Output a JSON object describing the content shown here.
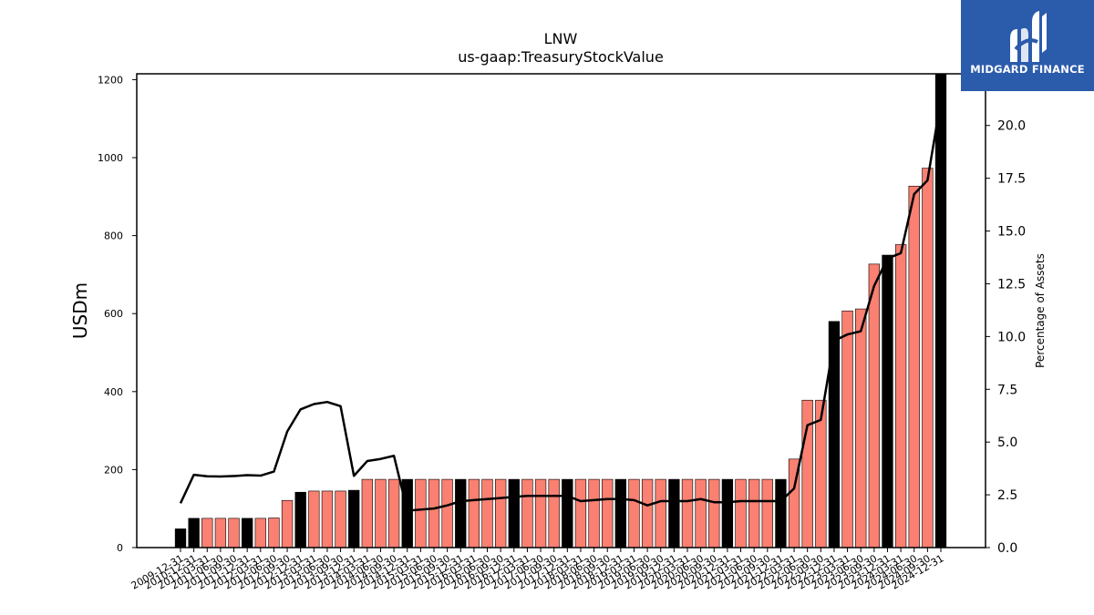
{
  "chart_data": {
    "type": "bar",
    "title": "LNW",
    "subtitle": "us-gaap:TreasuryStockValue",
    "ylabel": "USDm",
    "y2label": "Percentage of Assets",
    "ylim": [
      0,
      1215
    ],
    "y2lim": [
      0,
      22.45
    ],
    "yticks": [
      0,
      200,
      400,
      600,
      800,
      1000,
      1200
    ],
    "y2ticks": [
      "0.0",
      "2.5",
      "5.0",
      "7.5",
      "10.0",
      "12.5",
      "15.0",
      "17.5",
      "20.0"
    ],
    "grid": false,
    "annual_color": "#000000",
    "quarter_color": "#fa8072",
    "line_color": "#000000",
    "categories": [
      "2009-12-31",
      "2010-12-31",
      "2011-03-31",
      "2011-06-30",
      "2011-09-30",
      "2011-12-31",
      "2012-03-31",
      "2012-06-30",
      "2012-09-30",
      "2012-12-31",
      "2013-03-31",
      "2013-06-30",
      "2013-09-30",
      "2013-12-31",
      "2014-03-31",
      "2014-06-30",
      "2014-09-30",
      "2014-12-31",
      "2015-03-31",
      "2015-06-30",
      "2015-09-30",
      "2015-12-31",
      "2016-03-31",
      "2016-06-30",
      "2016-09-30",
      "2016-12-31",
      "2017-03-31",
      "2017-06-30",
      "2017-09-30",
      "2017-12-31",
      "2018-03-31",
      "2018-06-30",
      "2018-09-30",
      "2018-12-31",
      "2019-03-31",
      "2019-06-30",
      "2019-09-30",
      "2019-12-31",
      "2020-03-31",
      "2020-06-30",
      "2020-09-30",
      "2020-12-31",
      "2021-03-31",
      "2021-06-30",
      "2021-09-30",
      "2021-12-31",
      "2022-03-31",
      "2022-06-30",
      "2022-09-30",
      "2022-12-31",
      "2023-03-31",
      "2023-06-30",
      "2023-09-30",
      "2023-12-31",
      "2024-03-31",
      "2024-06-30",
      "2024-09-30",
      "2024-12-31"
    ],
    "annual": [
      true,
      true,
      false,
      false,
      false,
      true,
      false,
      false,
      false,
      true,
      false,
      false,
      false,
      true,
      false,
      false,
      false,
      true,
      false,
      false,
      false,
      true,
      false,
      false,
      false,
      true,
      false,
      false,
      false,
      true,
      false,
      false,
      false,
      true,
      false,
      false,
      false,
      true,
      false,
      false,
      false,
      true,
      false,
      false,
      false,
      true,
      false,
      false,
      false,
      true,
      false,
      false,
      false,
      true,
      false,
      false,
      false,
      true
    ],
    "values": [
      48,
      75,
      75,
      75,
      75,
      75,
      75,
      76,
      121,
      142,
      145,
      145,
      145,
      147,
      175,
      175,
      175,
      175,
      175,
      175,
      175,
      175,
      175,
      175,
      175,
      175,
      175,
      175,
      175,
      175,
      175,
      175,
      175,
      175,
      175,
      175,
      175,
      175,
      175,
      175,
      175,
      175,
      175,
      175,
      175,
      175,
      227,
      378,
      378,
      580,
      607,
      612,
      727,
      750,
      777,
      927,
      973,
      1215
    ],
    "pct_assets": [
      2.1,
      3.45,
      3.38,
      3.37,
      3.39,
      3.43,
      3.41,
      3.6,
      5.5,
      6.55,
      6.8,
      6.9,
      6.7,
      3.4,
      4.1,
      4.2,
      4.35,
      1.75,
      1.8,
      1.85,
      2.0,
      2.2,
      2.25,
      2.3,
      2.35,
      2.4,
      2.45,
      2.45,
      2.45,
      2.45,
      2.2,
      2.25,
      2.3,
      2.3,
      2.25,
      2.0,
      2.2,
      2.2,
      2.2,
      2.3,
      2.15,
      2.15,
      2.2,
      2.2,
      2.2,
      2.2,
      2.8,
      5.8,
      6.05,
      9.8,
      10.1,
      10.25,
      12.4,
      13.7,
      13.95,
      16.75,
      17.4,
      21.2
    ]
  },
  "logo": {
    "text": "MIDGARD FINANCE"
  }
}
